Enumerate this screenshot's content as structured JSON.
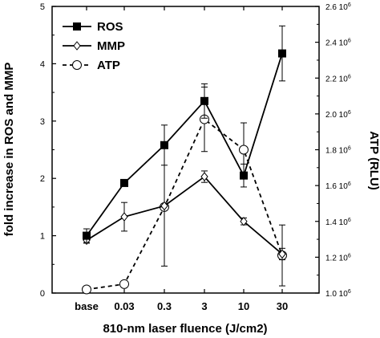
{
  "chart_data": {
    "type": "line",
    "xlabel": "810-nm laser fluence (J/cm2)",
    "ylabel_left": "fold increase in ROS and MMP",
    "ylabel_right": "ATP (RLU)",
    "categories": [
      "base",
      "0.03",
      "0.3",
      "3",
      "10",
      "30"
    ],
    "ylim_left": [
      0,
      5
    ],
    "yticks_left": [
      "0",
      "1",
      "2",
      "3",
      "4",
      "5"
    ],
    "ylim_right": [
      1000000,
      2600000
    ],
    "yticks_right": [
      {
        "mantissa": "1.0",
        "value": 1000000
      },
      {
        "mantissa": "1.2",
        "value": 1200000
      },
      {
        "mantissa": "1.4",
        "value": 1400000
      },
      {
        "mantissa": "1.6",
        "value": 1600000
      },
      {
        "mantissa": "1.8",
        "value": 1800000
      },
      {
        "mantissa": "2.0",
        "value": 2000000
      },
      {
        "mantissa": "2.2",
        "value": 2200000
      },
      {
        "mantissa": "2.4",
        "value": 2400000
      },
      {
        "mantissa": "2.6",
        "value": 2600000
      }
    ],
    "yticks_right_exp": "6",
    "yticks_right_base": "10",
    "series": [
      {
        "name": "ROS",
        "axis": "left",
        "marker": "filled-square",
        "line": "solid",
        "values": [
          1.0,
          1.92,
          2.58,
          3.35,
          2.05,
          4.18
        ],
        "err": [
          0.12,
          0.05,
          0.35,
          0.3,
          0.2,
          0.48
        ]
      },
      {
        "name": "MMP",
        "axis": "left",
        "marker": "open-diamond",
        "line": "solid",
        "values": [
          0.92,
          1.33,
          1.52,
          2.03,
          1.25,
          0.68
        ],
        "err": [
          0.05,
          0.25,
          1.05,
          0.1,
          0.06,
          0.1
        ]
      },
      {
        "name": "ATP",
        "axis": "right",
        "marker": "open-circle",
        "line": "dashed",
        "values": [
          1020000,
          1050000,
          1480000,
          1970000,
          1800000,
          1210000
        ],
        "err": [
          0,
          0,
          0,
          180000,
          150000,
          170000
        ]
      }
    ]
  }
}
